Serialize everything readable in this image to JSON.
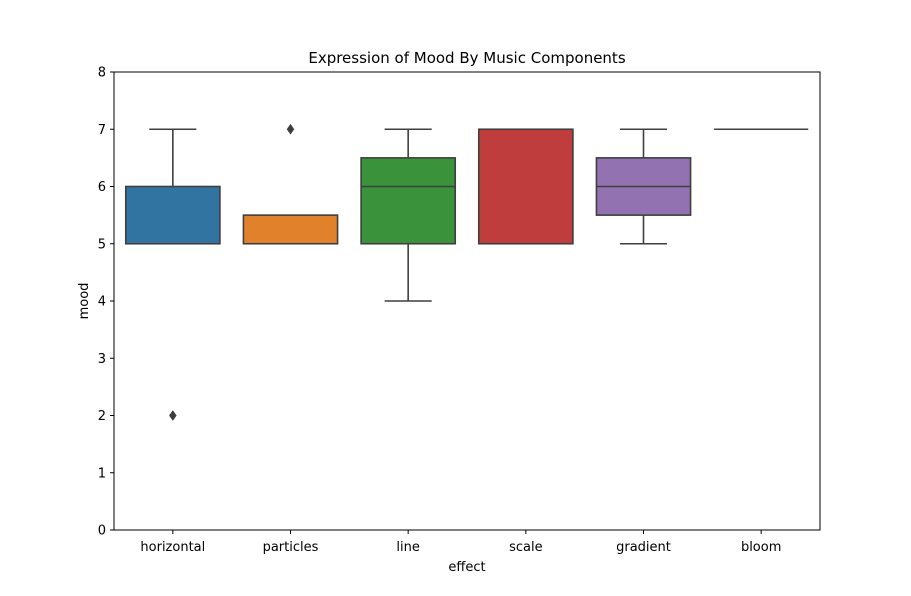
{
  "chart_data": {
    "type": "box",
    "title": "Expression of Mood By Music Components",
    "xlabel": "effect",
    "ylabel": "mood",
    "ylim": [
      0,
      8
    ],
    "yticks": [
      "0",
      "1",
      "2",
      "3",
      "4",
      "5",
      "6",
      "7",
      "8"
    ],
    "grid": false,
    "legend": "none",
    "categories": [
      "horizontal",
      "particles",
      "line",
      "scale",
      "gradient",
      "bloom"
    ],
    "boxes": [
      {
        "category": "horizontal",
        "q1": 5,
        "median": 5,
        "q3": 6,
        "whisker_low": 5,
        "whisker_high": 7,
        "outliers": [
          2
        ],
        "color": "#3274a1"
      },
      {
        "category": "particles",
        "q1": 5,
        "median": 5,
        "q3": 5.5,
        "whisker_low": 5,
        "whisker_high": 5.5,
        "outliers": [
          7
        ],
        "color": "#e1812c"
      },
      {
        "category": "line",
        "q1": 5,
        "median": 6,
        "q3": 6.5,
        "whisker_low": 4,
        "whisker_high": 7,
        "outliers": [],
        "color": "#3a923a"
      },
      {
        "category": "scale",
        "q1": 5,
        "median": 7,
        "q3": 7,
        "whisker_low": 5,
        "whisker_high": 7,
        "outliers": [],
        "color": "#c03d3e"
      },
      {
        "category": "gradient",
        "q1": 5.5,
        "median": 6,
        "q3": 6.5,
        "whisker_low": 5,
        "whisker_high": 7,
        "outliers": [],
        "color": "#9372b2"
      },
      {
        "category": "bloom",
        "q1": 7,
        "median": 7,
        "q3": 7,
        "whisker_low": 7,
        "whisker_high": 7,
        "outliers": [],
        "color": "#845b53"
      }
    ],
    "line_color": "#3f3f3f"
  }
}
